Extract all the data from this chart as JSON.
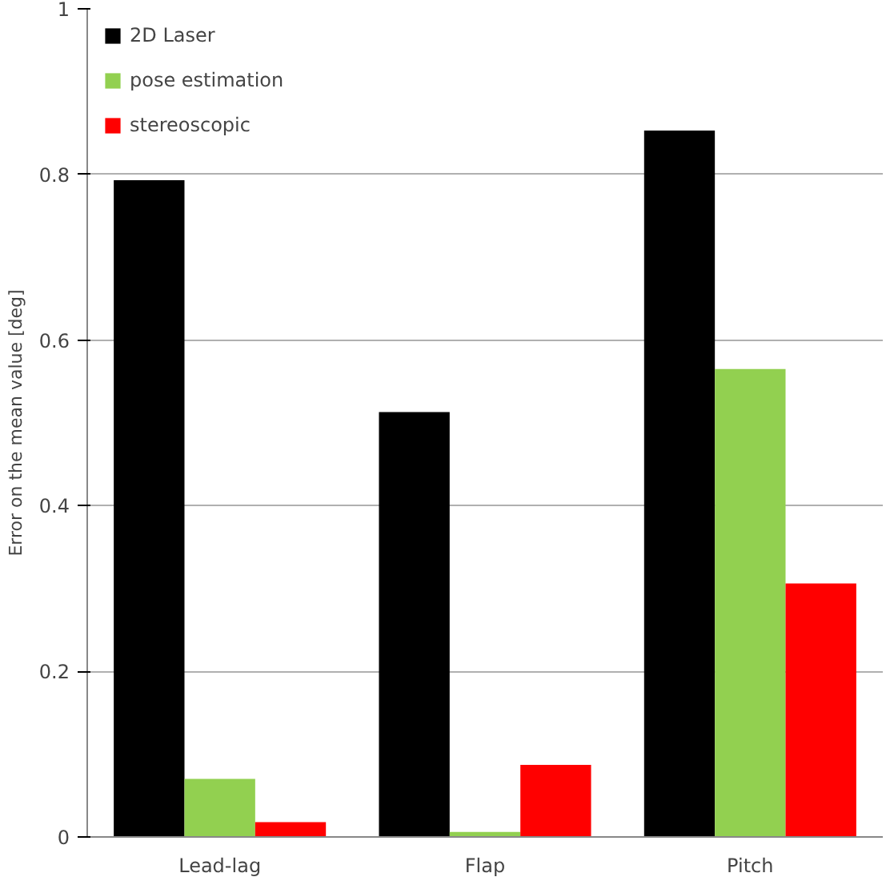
{
  "chart_data": {
    "type": "bar",
    "ylabel": "Error on the mean value [deg]",
    "categories": [
      "Lead-lag",
      "Flap",
      "Pitch"
    ],
    "series": [
      {
        "name": "2D Laser",
        "color": "#000000",
        "values": [
          0.793,
          0.513,
          0.853
        ]
      },
      {
        "name": "pose estimation",
        "color": "#92d050",
        "values": [
          0.07,
          0.006,
          0.565
        ]
      },
      {
        "name": "stereoscopic",
        "color": "#ff0000",
        "values": [
          0.018,
          0.087,
          0.306
        ]
      }
    ],
    "ylim": [
      0,
      1
    ],
    "yticks": [
      0,
      0.2,
      0.4,
      0.6,
      0.8,
      1
    ],
    "grid": "y",
    "legend": "top left"
  }
}
